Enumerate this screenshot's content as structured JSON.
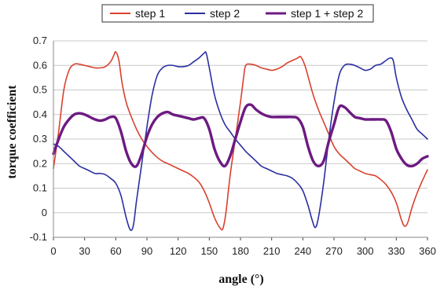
{
  "chart_data": {
    "type": "line",
    "xlabel": "angle (°)",
    "ylabel": "torque coefficient",
    "xlim": [
      0,
      360
    ],
    "ylim": [
      -0.1,
      0.7
    ],
    "xticks": [
      "0",
      "30",
      "60",
      "90",
      "120",
      "150",
      "180",
      "210",
      "240",
      "270",
      "300",
      "330",
      "360"
    ],
    "yticks": [
      "-0.1",
      "0",
      "0.1",
      "0.2",
      "0.3",
      "0.4",
      "0.5",
      "0.6",
      "0.7"
    ],
    "grid": "horizontal",
    "legend_position": "top",
    "series": [
      {
        "name": "step 1",
        "color": "#d9412e",
        "width": 1.6,
        "x": [
          0,
          5,
          10,
          15,
          20,
          25,
          30,
          35,
          40,
          45,
          50,
          55,
          58,
          60,
          63,
          66,
          70,
          75,
          80,
          85,
          90,
          95,
          100,
          105,
          110,
          115,
          120,
          125,
          130,
          135,
          140,
          145,
          150,
          155,
          160,
          163,
          166,
          170,
          175,
          180,
          183,
          185,
          190,
          195,
          200,
          205,
          210,
          215,
          220,
          225,
          230,
          235,
          238,
          242,
          246,
          250,
          255,
          260,
          265,
          270,
          275,
          280,
          285,
          290,
          295,
          300,
          305,
          310,
          315,
          320,
          325,
          330,
          335,
          338,
          341,
          345,
          350,
          355,
          360
        ],
        "y": [
          0.18,
          0.33,
          0.5,
          0.58,
          0.605,
          0.605,
          0.6,
          0.595,
          0.59,
          0.59,
          0.595,
          0.615,
          0.64,
          0.655,
          0.62,
          0.53,
          0.45,
          0.39,
          0.34,
          0.3,
          0.27,
          0.245,
          0.225,
          0.21,
          0.2,
          0.19,
          0.18,
          0.17,
          0.16,
          0.145,
          0.125,
          0.09,
          0.04,
          -0.02,
          -0.06,
          -0.065,
          0.0,
          0.15,
          0.3,
          0.45,
          0.55,
          0.6,
          0.605,
          0.6,
          0.59,
          0.585,
          0.58,
          0.585,
          0.595,
          0.61,
          0.62,
          0.63,
          0.635,
          0.6,
          0.54,
          0.48,
          0.42,
          0.37,
          0.32,
          0.27,
          0.24,
          0.22,
          0.2,
          0.18,
          0.17,
          0.16,
          0.155,
          0.15,
          0.135,
          0.115,
          0.085,
          0.04,
          -0.03,
          -0.055,
          -0.04,
          0.02,
          0.08,
          0.13,
          0.175
        ]
      },
      {
        "name": "step 2",
        "color": "#2a2fa0",
        "width": 1.6,
        "x": [
          0,
          5,
          10,
          15,
          20,
          25,
          30,
          35,
          40,
          45,
          50,
          55,
          60,
          65,
          70,
          74,
          77,
          80,
          85,
          90,
          95,
          100,
          105,
          110,
          115,
          120,
          125,
          130,
          135,
          140,
          145,
          147,
          150,
          155,
          160,
          165,
          170,
          175,
          180,
          185,
          190,
          195,
          200,
          205,
          210,
          215,
          220,
          225,
          230,
          235,
          240,
          245,
          249,
          252,
          255,
          260,
          265,
          270,
          275,
          280,
          285,
          290,
          295,
          300,
          305,
          310,
          315,
          320,
          324,
          327,
          330,
          335,
          340,
          345,
          350,
          355,
          360
        ],
        "y": [
          0.28,
          0.27,
          0.25,
          0.23,
          0.21,
          0.19,
          0.18,
          0.17,
          0.16,
          0.16,
          0.155,
          0.14,
          0.12,
          0.07,
          -0.02,
          -0.07,
          -0.05,
          0.05,
          0.2,
          0.35,
          0.48,
          0.56,
          0.59,
          0.6,
          0.6,
          0.595,
          0.595,
          0.6,
          0.615,
          0.63,
          0.65,
          0.65,
          0.59,
          0.48,
          0.41,
          0.36,
          0.33,
          0.3,
          0.275,
          0.25,
          0.23,
          0.21,
          0.19,
          0.18,
          0.17,
          0.16,
          0.155,
          0.15,
          0.14,
          0.12,
          0.09,
          0.03,
          -0.03,
          -0.06,
          -0.02,
          0.12,
          0.3,
          0.45,
          0.56,
          0.6,
          0.605,
          0.6,
          0.59,
          0.58,
          0.585,
          0.6,
          0.605,
          0.62,
          0.63,
          0.62,
          0.55,
          0.47,
          0.42,
          0.38,
          0.34,
          0.32,
          0.3
        ]
      },
      {
        "name": "step 1 + step 2",
        "color": "#6d1a82",
        "width": 3.4,
        "x": [
          0,
          5,
          10,
          15,
          20,
          25,
          30,
          35,
          40,
          45,
          50,
          55,
          60,
          65,
          70,
          75,
          80,
          85,
          90,
          95,
          100,
          105,
          110,
          115,
          120,
          125,
          130,
          135,
          140,
          145,
          150,
          155,
          160,
          165,
          170,
          175,
          180,
          185,
          190,
          195,
          200,
          205,
          210,
          215,
          220,
          225,
          230,
          235,
          240,
          245,
          250,
          255,
          260,
          265,
          270,
          275,
          280,
          285,
          290,
          295,
          300,
          305,
          310,
          315,
          320,
          325,
          330,
          335,
          340,
          345,
          350,
          355,
          360
        ],
        "y": [
          0.24,
          0.3,
          0.35,
          0.38,
          0.4,
          0.405,
          0.4,
          0.39,
          0.38,
          0.375,
          0.38,
          0.39,
          0.385,
          0.33,
          0.25,
          0.2,
          0.19,
          0.24,
          0.31,
          0.36,
          0.39,
          0.405,
          0.41,
          0.4,
          0.395,
          0.39,
          0.385,
          0.38,
          0.385,
          0.385,
          0.34,
          0.26,
          0.21,
          0.19,
          0.23,
          0.3,
          0.37,
          0.43,
          0.44,
          0.42,
          0.405,
          0.395,
          0.39,
          0.39,
          0.39,
          0.39,
          0.39,
          0.385,
          0.35,
          0.27,
          0.21,
          0.19,
          0.21,
          0.29,
          0.36,
          0.43,
          0.43,
          0.41,
          0.39,
          0.385,
          0.38,
          0.38,
          0.38,
          0.38,
          0.375,
          0.33,
          0.26,
          0.22,
          0.195,
          0.19,
          0.2,
          0.22,
          0.23
        ]
      }
    ]
  }
}
